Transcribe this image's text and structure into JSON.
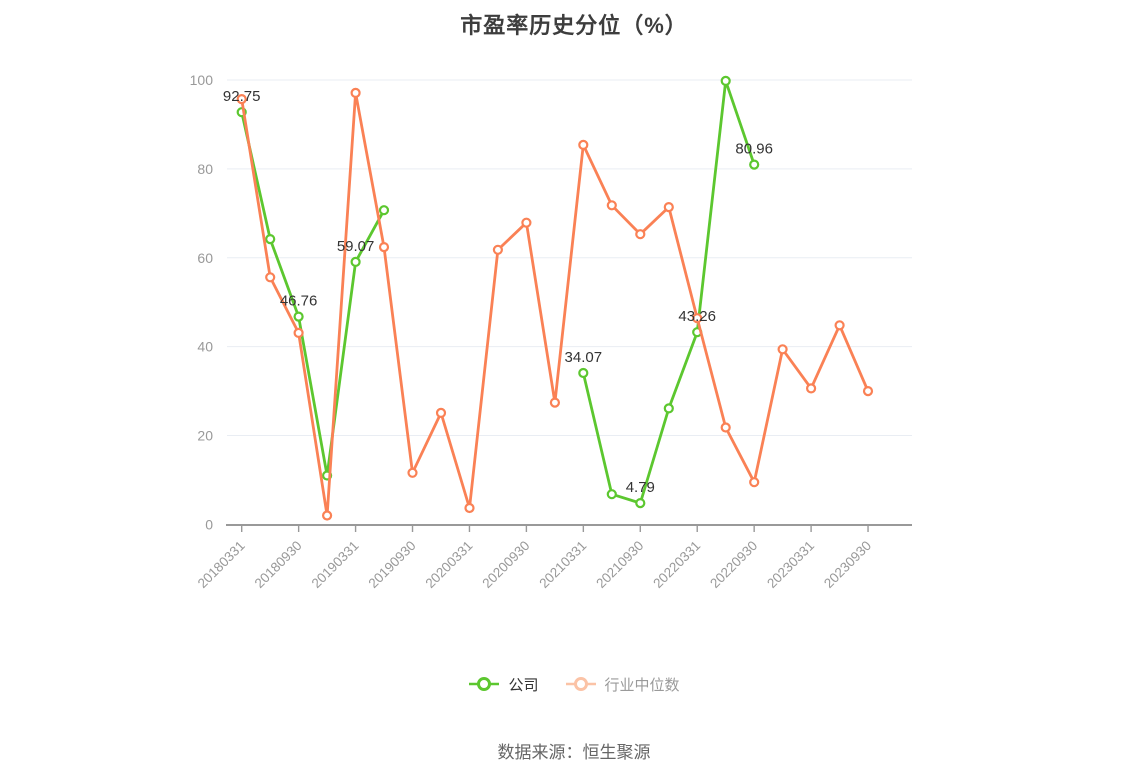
{
  "title": "市盈率历史分位（%）",
  "source_note": "数据来源：恒生聚源",
  "legend": [
    {
      "label": "公司",
      "icon_color": "#5cc72f",
      "text_color": "#333333"
    },
    {
      "label": "行业中位数",
      "icon_color": "#fbc3a6",
      "text_color": "#9a9a9a"
    }
  ],
  "colors": {
    "company_line": "#5cc72f",
    "industry_line": "#fa8155",
    "axis": "#999999",
    "grid": "#e9edf3",
    "tick_label": "#999999",
    "data_label": "#333333",
    "title": "#3d3d3d"
  },
  "chart_data": {
    "type": "line",
    "title": "市盈率历史分位（%）",
    "xlabel": "",
    "ylabel": "",
    "ylim": [
      0,
      100
    ],
    "y_ticks": [
      0,
      20,
      40,
      60,
      80,
      100
    ],
    "grid": true,
    "legend_position": "bottom",
    "n_points": 23,
    "x_label_every": 2,
    "x_labels": [
      "20180331",
      "20180930",
      "20190331",
      "20190930",
      "20200331",
      "20200930",
      "20210331",
      "20210930",
      "20220331",
      "20220930",
      "20230331",
      "20230930"
    ],
    "series": [
      {
        "name": "公司",
        "color": "#5cc72f",
        "values": [
          92.75,
          64.2,
          46.76,
          11.0,
          59.07,
          70.7,
          null,
          null,
          null,
          null,
          null,
          null,
          34.07,
          6.8,
          4.79,
          26.1,
          43.26,
          99.8,
          80.96,
          null,
          null,
          null,
          null
        ],
        "labeled_points": {
          "0": "92.75",
          "2": "46.76",
          "4": "59.07",
          "12": "34.07",
          "14": "4.79",
          "16": "43.26",
          "18": "80.96"
        }
      },
      {
        "name": "行业中位数",
        "color": "#fa8155",
        "values": [
          95.7,
          55.6,
          43.1,
          2.0,
          97.1,
          62.4,
          11.6,
          25.1,
          3.7,
          61.8,
          67.9,
          27.4,
          85.4,
          71.8,
          65.3,
          71.4,
          46.4,
          21.8,
          9.5,
          39.4,
          30.6,
          44.8,
          30.0
        ],
        "labeled_points": {}
      }
    ]
  }
}
